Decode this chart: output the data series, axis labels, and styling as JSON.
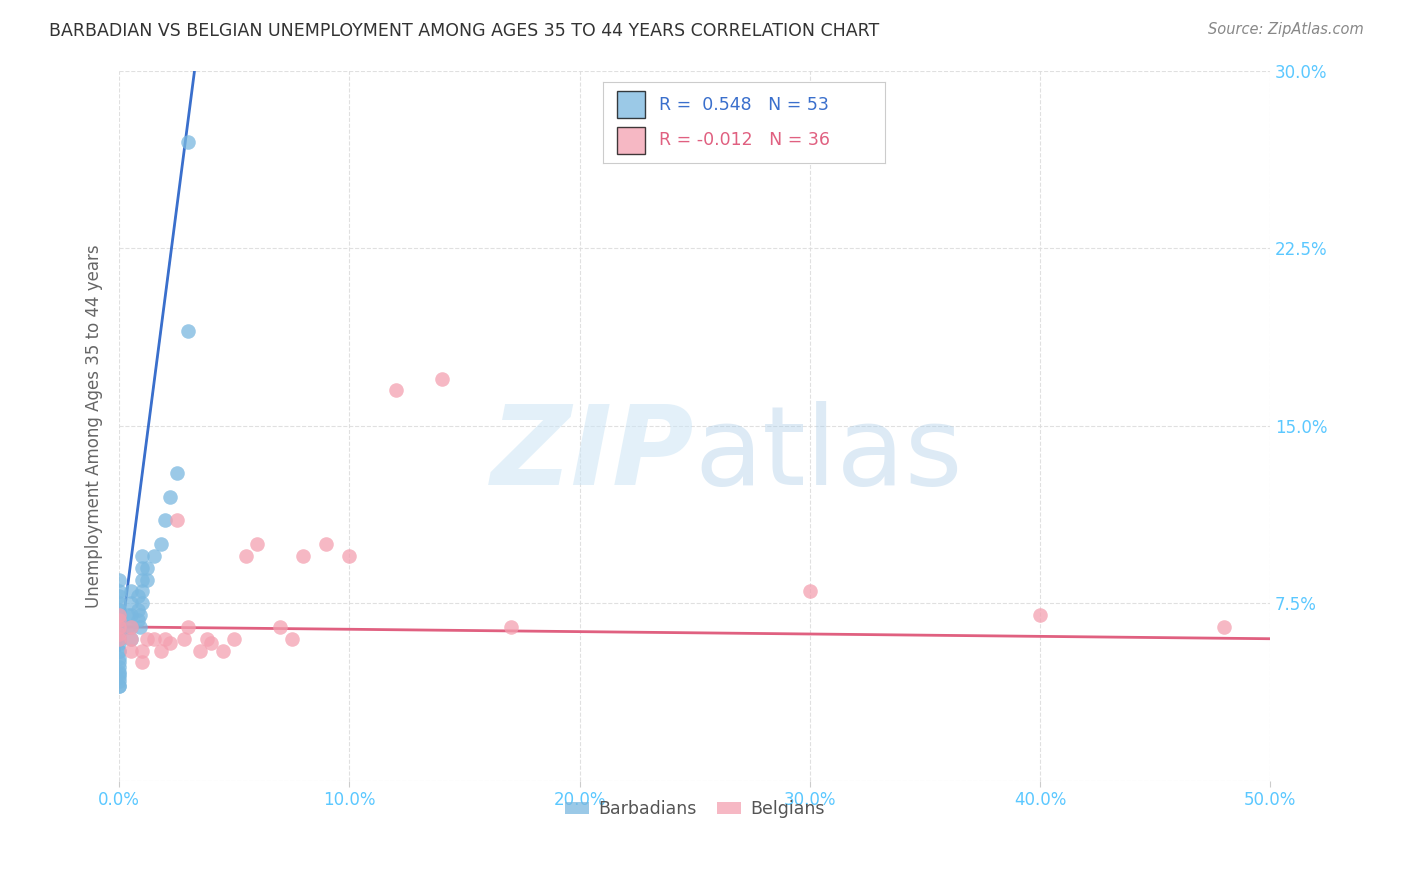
{
  "title": "BARBADIAN VS BELGIAN UNEMPLOYMENT AMONG AGES 35 TO 44 YEARS CORRELATION CHART",
  "source": "Source: ZipAtlas.com",
  "ylabel": "Unemployment Among Ages 35 to 44 years",
  "xlim": [
    0.0,
    0.5
  ],
  "ylim": [
    0.0,
    0.3
  ],
  "xtick_vals": [
    0.0,
    0.1,
    0.2,
    0.3,
    0.4,
    0.5
  ],
  "xtick_labels": [
    "0.0%",
    "10.0%",
    "20.0%",
    "30.0%",
    "40.0%",
    "50.0%"
  ],
  "ytick_vals": [
    0.0,
    0.075,
    0.15,
    0.225,
    0.3
  ],
  "ytick_labels": [
    "",
    "7.5%",
    "15.0%",
    "22.5%",
    "30.0%"
  ],
  "barbadian_color": "#7ab8e0",
  "belgian_color": "#f4a0b0",
  "trend_blue": "#3a6fcc",
  "trend_pink": "#e06080",
  "barbadian_R": 0.548,
  "barbadian_N": 53,
  "belgian_R": -0.012,
  "belgian_N": 36,
  "tick_color": "#5bc8ff",
  "grid_color": "#dddddd",
  "barbadian_x": [
    0.0,
    0.0,
    0.0,
    0.0,
    0.0,
    0.0,
    0.0,
    0.0,
    0.0,
    0.0,
    0.0,
    0.0,
    0.0,
    0.0,
    0.0,
    0.0,
    0.0,
    0.0,
    0.0,
    0.0,
    0.0,
    0.0,
    0.0,
    0.0,
    0.0,
    0.0,
    0.0,
    0.004,
    0.004,
    0.005,
    0.005,
    0.005,
    0.005,
    0.005,
    0.008,
    0.008,
    0.008,
    0.009,
    0.009,
    0.01,
    0.01,
    0.01,
    0.01,
    0.01,
    0.012,
    0.012,
    0.015,
    0.018,
    0.02,
    0.022,
    0.025,
    0.03,
    0.03
  ],
  "barbadian_y": [
    0.04,
    0.04,
    0.042,
    0.044,
    0.045,
    0.046,
    0.048,
    0.05,
    0.052,
    0.055,
    0.055,
    0.058,
    0.06,
    0.06,
    0.062,
    0.063,
    0.065,
    0.065,
    0.068,
    0.07,
    0.07,
    0.072,
    0.072,
    0.075,
    0.078,
    0.08,
    0.085,
    0.065,
    0.07,
    0.06,
    0.065,
    0.07,
    0.075,
    0.08,
    0.068,
    0.072,
    0.078,
    0.065,
    0.07,
    0.075,
    0.08,
    0.085,
    0.09,
    0.095,
    0.085,
    0.09,
    0.095,
    0.1,
    0.11,
    0.12,
    0.13,
    0.19,
    0.27
  ],
  "belgian_x": [
    0.0,
    0.0,
    0.0,
    0.0,
    0.0,
    0.005,
    0.005,
    0.005,
    0.01,
    0.01,
    0.012,
    0.015,
    0.018,
    0.02,
    0.022,
    0.025,
    0.028,
    0.03,
    0.035,
    0.038,
    0.04,
    0.045,
    0.05,
    0.055,
    0.06,
    0.07,
    0.075,
    0.08,
    0.09,
    0.1,
    0.12,
    0.14,
    0.17,
    0.3,
    0.4,
    0.48
  ],
  "belgian_y": [
    0.06,
    0.062,
    0.065,
    0.068,
    0.07,
    0.055,
    0.06,
    0.065,
    0.05,
    0.055,
    0.06,
    0.06,
    0.055,
    0.06,
    0.058,
    0.11,
    0.06,
    0.065,
    0.055,
    0.06,
    0.058,
    0.055,
    0.06,
    0.095,
    0.1,
    0.065,
    0.06,
    0.095,
    0.1,
    0.095,
    0.165,
    0.17,
    0.065,
    0.08,
    0.07,
    0.065
  ]
}
